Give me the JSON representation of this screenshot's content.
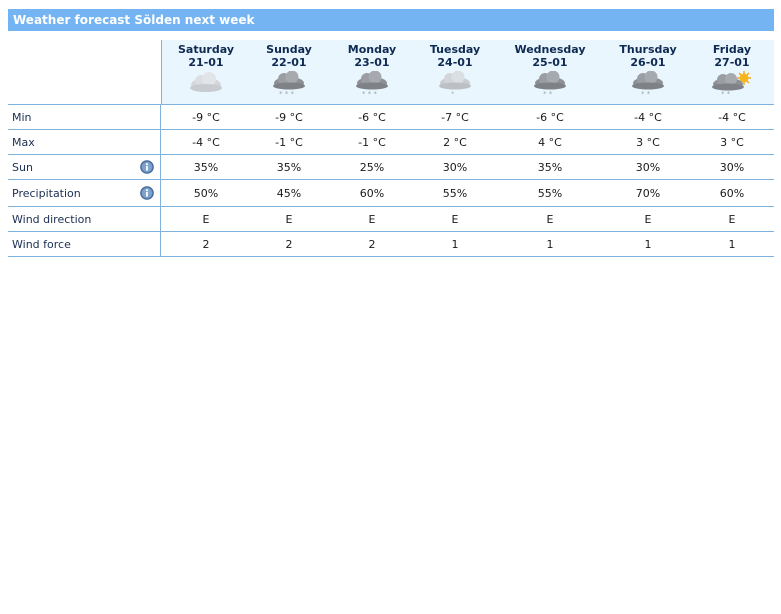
{
  "title": "Weather forecast Sölden next week",
  "days": [
    {
      "name": "Saturday",
      "date": "21-01",
      "icon": "cloudy-light-icon"
    },
    {
      "name": "Sunday",
      "date": "22-01",
      "icon": "cloud-snow-icon"
    },
    {
      "name": "Monday",
      "date": "23-01",
      "icon": "cloud-snow-icon"
    },
    {
      "name": "Tuesday",
      "date": "24-01",
      "icon": "cloud-light-snow-icon"
    },
    {
      "name": "Wednesday",
      "date": "25-01",
      "icon": "cloud-light-snow-icon"
    },
    {
      "name": "Thursday",
      "date": "26-01",
      "icon": "cloud-light-snow-icon"
    },
    {
      "name": "Friday",
      "date": "27-01",
      "icon": "sun-cloud-snow-icon"
    }
  ],
  "rows": {
    "min": {
      "label": "Min",
      "values": [
        "-9 °C",
        "-9 °C",
        "-6 °C",
        "-7 °C",
        "-6 °C",
        "-4 °C",
        "-4 °C"
      ]
    },
    "max": {
      "label": "Max",
      "values": [
        "-4 °C",
        "-1 °C",
        "-1 °C",
        "2 °C",
        "4 °C",
        "3 °C",
        "3 °C"
      ]
    },
    "sun": {
      "label": "Sun",
      "values": [
        "35%",
        "35%",
        "25%",
        "30%",
        "35%",
        "30%",
        "30%"
      ]
    },
    "precipitation": {
      "label": "Precipitation",
      "values": [
        "50%",
        "45%",
        "60%",
        "55%",
        "55%",
        "70%",
        "60%"
      ]
    },
    "wind_direction": {
      "label": "Wind direction",
      "values": [
        "E",
        "E",
        "E",
        "E",
        "E",
        "E",
        "E"
      ]
    },
    "wind_force": {
      "label": "Wind force",
      "values": [
        "2",
        "2",
        "2",
        "1",
        "1",
        "1",
        "1"
      ]
    }
  },
  "colors": {
    "titlebar": "#74b4f3",
    "header_bg": "#eaf6fd",
    "grid_lines": "#7fb2dc"
  }
}
